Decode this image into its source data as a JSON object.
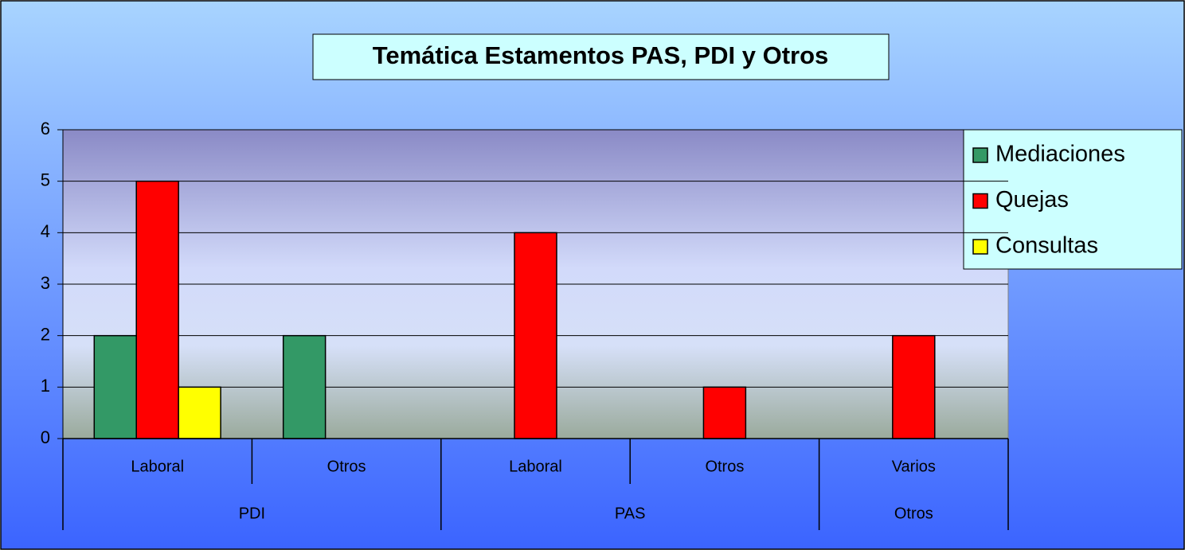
{
  "chart_data": {
    "type": "bar",
    "title": "Temática Estamentos PAS, PDI y Otros",
    "categories": [
      "Laboral",
      "Otros",
      "Laboral",
      "Otros",
      "Varios"
    ],
    "category_groups": [
      "PDI",
      "PDI",
      "PAS",
      "PAS",
      "Otros"
    ],
    "series": [
      {
        "name": "Mediaciones",
        "color": "#339966",
        "values": [
          2,
          2,
          null,
          null,
          null
        ]
      },
      {
        "name": "Quejas",
        "color": "#ff0000",
        "values": [
          5,
          null,
          4,
          1,
          2
        ]
      },
      {
        "name": "Consultas",
        "color": "#ffff00",
        "values": [
          1,
          null,
          null,
          null,
          null
        ]
      }
    ],
    "ylim": [
      0,
      6
    ],
    "yticks": [
      0,
      1,
      2,
      3,
      4,
      5,
      6
    ],
    "grid": true,
    "legend": "right"
  }
}
